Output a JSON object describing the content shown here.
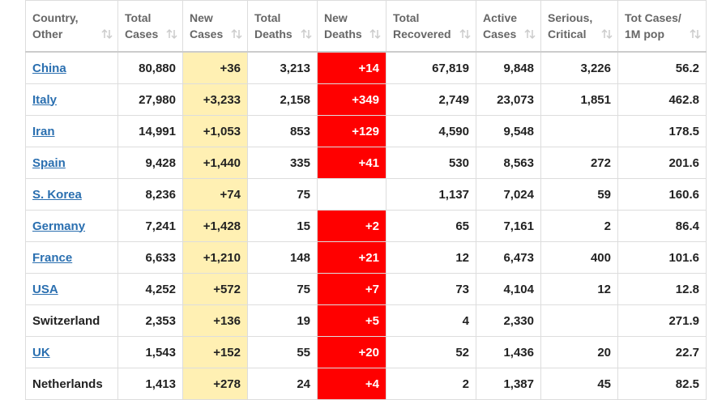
{
  "table": {
    "header": [
      [
        "Country,",
        "Other"
      ],
      [
        "Total",
        "Cases"
      ],
      [
        "New",
        "Cases"
      ],
      [
        "Total",
        "Deaths"
      ],
      [
        "New",
        "Deaths"
      ],
      [
        "Total",
        "Recovered"
      ],
      [
        "Active",
        "Cases"
      ],
      [
        "Serious,",
        "Critical"
      ],
      [
        "Tot Cases/",
        "1M pop"
      ]
    ],
    "rows": [
      {
        "country": "China",
        "link": true,
        "cells": [
          "80,880",
          "+36",
          "3,213",
          "+14",
          "67,819",
          "9,848",
          "3,226",
          "56.2"
        ]
      },
      {
        "country": "Italy",
        "link": true,
        "cells": [
          "27,980",
          "+3,233",
          "2,158",
          "+349",
          "2,749",
          "23,073",
          "1,851",
          "462.8"
        ]
      },
      {
        "country": "Iran",
        "link": true,
        "cells": [
          "14,991",
          "+1,053",
          "853",
          "+129",
          "4,590",
          "9,548",
          null,
          "178.5"
        ]
      },
      {
        "country": "Spain",
        "link": true,
        "cells": [
          "9,428",
          "+1,440",
          "335",
          "+41",
          "530",
          "8,563",
          "272",
          "201.6"
        ]
      },
      {
        "country": "S. Korea",
        "link": true,
        "cells": [
          "8,236",
          "+74",
          "75",
          null,
          "1,137",
          "7,024",
          "59",
          "160.6"
        ]
      },
      {
        "country": "Germany",
        "link": true,
        "cells": [
          "7,241",
          "+1,428",
          "15",
          "+2",
          "65",
          "7,161",
          "2",
          "86.4"
        ]
      },
      {
        "country": "France",
        "link": true,
        "cells": [
          "6,633",
          "+1,210",
          "148",
          "+21",
          "12",
          "6,473",
          "400",
          "101.6"
        ]
      },
      {
        "country": "USA",
        "link": true,
        "cells": [
          "4,252",
          "+572",
          "75",
          "+7",
          "73",
          "4,104",
          "12",
          "12.8"
        ]
      },
      {
        "country": "Switzerland",
        "link": false,
        "cells": [
          "2,353",
          "+136",
          "19",
          "+5",
          "4",
          "2,330",
          null,
          "271.9"
        ]
      },
      {
        "country": "UK",
        "link": true,
        "cells": [
          "1,543",
          "+152",
          "55",
          "+20",
          "52",
          "1,436",
          "20",
          "22.7"
        ]
      },
      {
        "country": "Netherlands",
        "link": false,
        "cells": [
          "1,413",
          "+278",
          "24",
          "+4",
          "2",
          "1,387",
          "45",
          "82.5"
        ]
      }
    ]
  }
}
